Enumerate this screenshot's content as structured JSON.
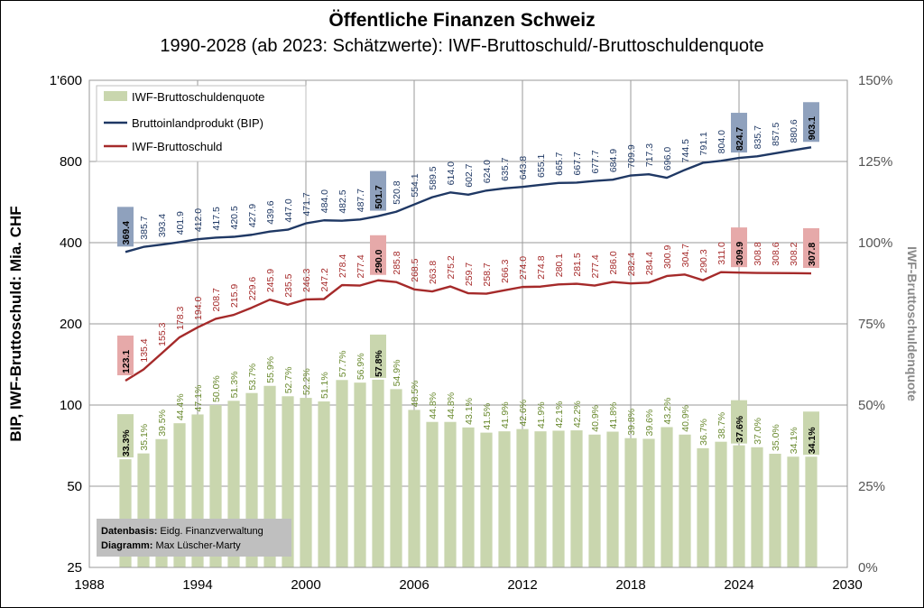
{
  "chart_data": {
    "type": "bar+line",
    "title": "Öffentliche  Finanzen Schweiz",
    "subtitle": "1990-2028 (ab 2023: Schätzwerte): IWF-Bruttoschuld/-Bruttoschuldenquote",
    "ylabel": "BIP, IWF-Bruttoschuld: Mia. CHF",
    "ylabel_right": "IWF-Bruttoschuldenquote",
    "x_ticks": [
      "1988",
      "1994",
      "2000",
      "2006",
      "2012",
      "2018",
      "2024",
      "2030"
    ],
    "xlim": [
      1988,
      2030
    ],
    "y_scale": "log",
    "ylim": [
      25,
      1600
    ],
    "y_ticks": [
      "25",
      "50",
      "100",
      "200",
      "400",
      "800",
      "1'600"
    ],
    "y_tick_values": [
      25,
      50,
      100,
      200,
      400,
      800,
      1600
    ],
    "y2lim": [
      0,
      150
    ],
    "y2_ticks": [
      "0%",
      "25%",
      "50%",
      "75%",
      "100%",
      "125%",
      "150%"
    ],
    "y2_tick_values": [
      0,
      25,
      50,
      75,
      100,
      125,
      150
    ],
    "grid": true,
    "legend_position": "top-left",
    "years": [
      1990,
      1991,
      1992,
      1993,
      1994,
      1995,
      1996,
      1997,
      1998,
      1999,
      2000,
      2001,
      2002,
      2003,
      2004,
      2005,
      2006,
      2007,
      2008,
      2009,
      2010,
      2011,
      2012,
      2013,
      2014,
      2015,
      2016,
      2017,
      2018,
      2019,
      2020,
      2021,
      2022,
      2023,
      2024,
      2025,
      2026,
      2027,
      2028
    ],
    "highlight_years": [
      1990,
      2004,
      2024,
      2028
    ],
    "series": [
      {
        "name": "IWF-Bruttoschuldenquote",
        "type": "bar",
        "axis": "right",
        "color": "#c9d6ae",
        "label_color": "#6a8a2f",
        "values": [
          33.3,
          35.1,
          39.5,
          44.4,
          47.1,
          50.0,
          51.3,
          53.7,
          55.9,
          52.7,
          52.2,
          51.1,
          57.7,
          56.9,
          57.8,
          54.9,
          48.5,
          44.8,
          44.8,
          43.1,
          41.5,
          41.9,
          42.6,
          41.9,
          42.1,
          42.2,
          40.9,
          41.8,
          39.8,
          39.6,
          43.2,
          40.9,
          36.7,
          38.7,
          37.6,
          37.0,
          35.0,
          34.1,
          34.1
        ],
        "labels": [
          "33.3%",
          "35.1%",
          "39.5%",
          "44.4%",
          "47.1%",
          "50.0%",
          "51.3%",
          "53.7%",
          "55.9%",
          "52.7%",
          "52.2%",
          "51.1%",
          "57.7%",
          "56.9%",
          "57.8%",
          "54.9%",
          "48.5%",
          "44.8%",
          "44.8%",
          "43.1%",
          "41.5%",
          "41.9%",
          "42.6%",
          "41.9%",
          "42.1%",
          "42.2%",
          "40.9%",
          "41.8%",
          "39.8%",
          "39.6%",
          "43.2%",
          "40.9%",
          "36.7%",
          "38.7%",
          "37.6%",
          "37.0%",
          "35.0%",
          "34.1%",
          "34.1%"
        ]
      },
      {
        "name": "Bruttoinlandprodukt (BIP)",
        "type": "line",
        "axis": "left",
        "color": "#1f3864",
        "values": [
          369.4,
          385.7,
          393.4,
          401.9,
          412.0,
          417.5,
          420.5,
          427.9,
          439.6,
          447.0,
          471.7,
          484.0,
          482.5,
          487.7,
          501.7,
          520.8,
          554.1,
          589.5,
          614.0,
          602.7,
          624.0,
          635.7,
          643.8,
          655.1,
          665.7,
          667.7,
          677.7,
          684.9,
          709.9,
          717.3,
          696.0,
          744.5,
          791.1,
          804.0,
          824.7,
          835.7,
          857.5,
          880.6,
          903.1
        ],
        "labels": [
          "369.4",
          "385.7",
          "393.4",
          "401.9",
          "412.0",
          "417.5",
          "420.5",
          "427.9",
          "439.6",
          "447.0",
          "471.7",
          "484.0",
          "482.5",
          "487.7",
          "501.7",
          "520.8",
          "554.1",
          "589.5",
          "614.0",
          "602.7",
          "624.0",
          "635.7",
          "643.8",
          "655.1",
          "665.7",
          "667.7",
          "677.7",
          "684.9",
          "709.9",
          "717.3",
          "696.0",
          "744.5",
          "791.1",
          "804.0",
          "824.7",
          "835.7",
          "857.5",
          "880.6",
          "903.1"
        ]
      },
      {
        "name": "IWF-Bruttoschuld",
        "type": "line",
        "axis": "left",
        "color": "#a52a2a",
        "values": [
          123.1,
          135.4,
          155.3,
          178.3,
          194.0,
          208.7,
          215.9,
          229.6,
          245.9,
          235.5,
          246.3,
          247.2,
          278.4,
          277.4,
          290.0,
          285.8,
          268.5,
          263.8,
          275.2,
          259.7,
          258.7,
          266.3,
          274.0,
          274.8,
          280.1,
          281.5,
          277.4,
          286.0,
          282.4,
          284.4,
          300.9,
          304.7,
          290.3,
          311.0,
          309.9,
          308.8,
          308.6,
          308.2,
          307.8
        ],
        "labels": [
          "123.1",
          "135.4",
          "155.3",
          "178.3",
          "194.0",
          "208.7",
          "215.9",
          "229.6",
          "245.9",
          "235.5",
          "246.3",
          "247.2",
          "278.4",
          "277.4",
          "290.0",
          "285.8",
          "268.5",
          "263.8",
          "275.2",
          "259.7",
          "258.7",
          "266.3",
          "274.0",
          "274.8",
          "280.1",
          "281.5",
          "277.4",
          "286.0",
          "282.4",
          "284.4",
          "300.9",
          "304.7",
          "290.3",
          "311.0",
          "309.9",
          "308.8",
          "308.6",
          "308.2",
          "307.8"
        ]
      }
    ],
    "source": {
      "line1_bold": "Datenbasis:",
      "line1_text": " Eidg. Finanzverwaltung",
      "line2_bold": "Diagramm:",
      "line2_text": " Max Lüscher-Marty"
    }
  }
}
